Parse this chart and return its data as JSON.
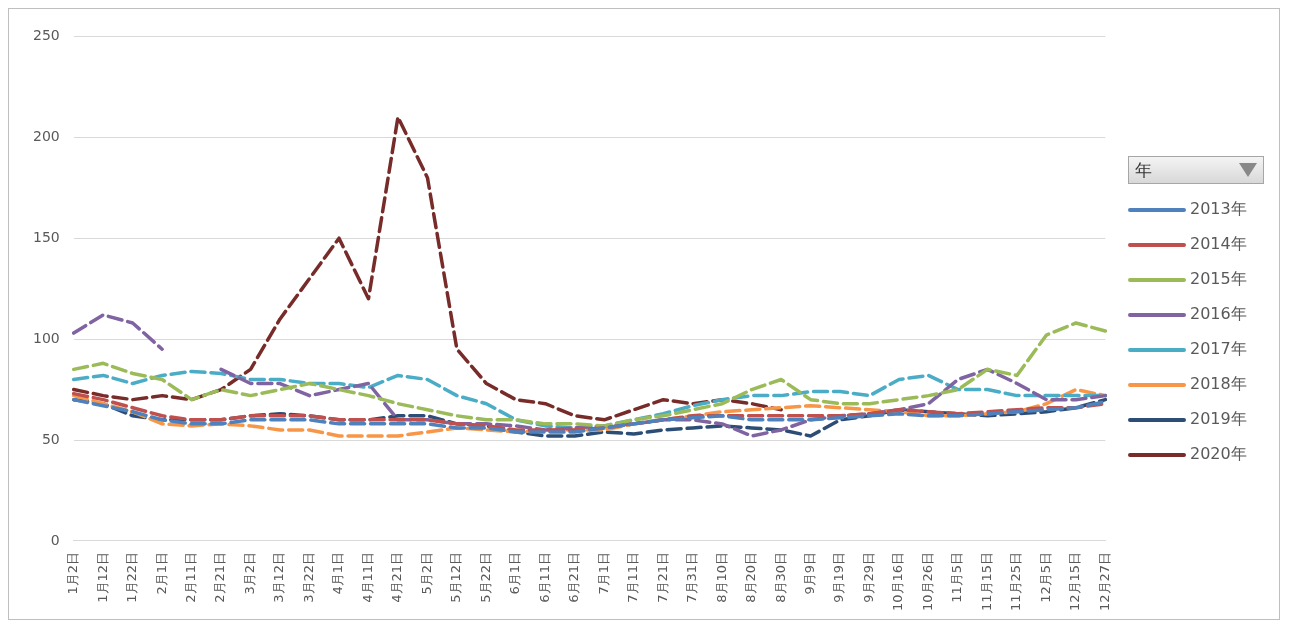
{
  "chart_data": {
    "type": "line",
    "legend_title": "年",
    "categories": [
      "1月2日",
      "1月12日",
      "1月22日",
      "2月1日",
      "2月11日",
      "2月21日",
      "3月2日",
      "3月12日",
      "3月22日",
      "4月1日",
      "4月11日",
      "4月21日",
      "5月2日",
      "5月12日",
      "5月22日",
      "6月1日",
      "6月11日",
      "6月21日",
      "7月1日",
      "7月11日",
      "7月21日",
      "7月31日",
      "8月10日",
      "8月20日",
      "8月30日",
      "9月9日",
      "9月19日",
      "9月29日",
      "10月16日",
      "10月26日",
      "11月5日",
      "11月15日",
      "11月25日",
      "12月5日",
      "12月15日",
      "12月27日"
    ],
    "series": [
      {
        "name": "2013年",
        "color": "#4f81bd",
        "values": [
          70,
          67,
          64,
          60,
          58,
          58,
          60,
          60,
          60,
          58,
          58,
          58,
          58,
          56,
          56,
          54,
          54,
          54,
          56,
          58,
          60,
          61,
          62,
          60,
          60,
          60,
          61,
          62,
          63,
          62,
          62,
          63,
          64,
          65,
          66,
          69
        ]
      },
      {
        "name": "2014年",
        "color": "#c0504d",
        "values": [
          73,
          70,
          66,
          62,
          60,
          60,
          62,
          62,
          62,
          60,
          60,
          60,
          60,
          58,
          57,
          55,
          55,
          55,
          56,
          58,
          60,
          62,
          62,
          62,
          62,
          62,
          62,
          63,
          65,
          64,
          63,
          64,
          65,
          66,
          66,
          68
        ]
      },
      {
        "name": "2015年",
        "color": "#9bbb59",
        "values": [
          85,
          88,
          83,
          80,
          70,
          75,
          72,
          75,
          78,
          75,
          72,
          68,
          65,
          62,
          60,
          60,
          58,
          58,
          57,
          60,
          62,
          65,
          68,
          75,
          80,
          70,
          68,
          68,
          70,
          72,
          75,
          85,
          82,
          102,
          108,
          104
        ]
      },
      {
        "name": "2016年",
        "color": "#8064a2",
        "values": [
          103,
          112,
          108,
          95,
          null,
          85,
          78,
          78,
          72,
          75,
          78,
          60,
          60,
          58,
          58,
          57,
          55,
          56,
          57,
          58,
          60,
          60,
          58,
          52,
          55,
          60,
          62,
          63,
          65,
          68,
          80,
          85,
          78,
          70,
          70,
          72
        ]
      },
      {
        "name": "2017年",
        "color": "#4bacc6",
        "values": [
          80,
          82,
          78,
          82,
          84,
          83,
          80,
          80,
          78,
          78,
          76,
          82,
          80,
          72,
          68,
          60,
          57,
          56,
          57,
          60,
          63,
          67,
          70,
          72,
          72,
          74,
          74,
          72,
          80,
          82,
          75,
          75,
          72,
          72,
          72,
          72
        ]
      },
      {
        "name": "2018年",
        "color": "#f79646",
        "values": [
          72,
          68,
          64,
          58,
          57,
          58,
          57,
          55,
          55,
          52,
          52,
          52,
          54,
          56,
          55,
          54,
          55,
          55,
          55,
          58,
          60,
          62,
          64,
          65,
          66,
          67,
          66,
          65,
          64,
          62,
          62,
          63,
          64,
          68,
          75,
          72
        ]
      },
      {
        "name": "2019年",
        "color": "#2c4d75",
        "values": [
          70,
          68,
          62,
          60,
          60,
          60,
          62,
          63,
          62,
          60,
          60,
          62,
          62,
          58,
          57,
          54,
          52,
          52,
          54,
          53,
          55,
          56,
          57,
          56,
          55,
          52,
          60,
          62,
          65,
          64,
          63,
          62,
          63,
          64,
          66,
          70
        ]
      },
      {
        "name": "2020年",
        "color": "#772c2a",
        "values": [
          75,
          72,
          70,
          72,
          70,
          75,
          85,
          110,
          130,
          150,
          120,
          210,
          180,
          95,
          78,
          70,
          68,
          62,
          60,
          65,
          70,
          68,
          70,
          68,
          65,
          null,
          null,
          null,
          null,
          null,
          null,
          null,
          null,
          null,
          null,
          null
        ]
      }
    ],
    "ylim": [
      0,
      250
    ],
    "yticks": [
      0,
      50,
      100,
      150,
      200,
      250
    ],
    "grid": "y",
    "legend": "right",
    "marker": "none",
    "line_style": "dashed"
  }
}
